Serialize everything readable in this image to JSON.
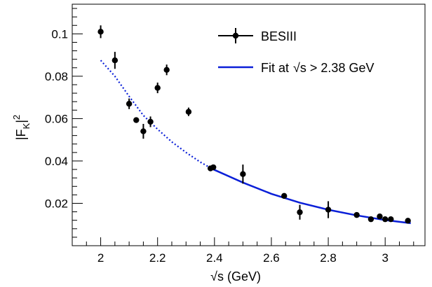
{
  "chart_data": {
    "type": "scatter",
    "xlabel": "s (GeV)",
    "xlabel_sqrt_symbol": "√",
    "ylabel_base": "|F",
    "ylabel_sub": "K",
    "ylabel_end": "|",
    "ylabel_sup": "2",
    "xlim": [
      1.9,
      3.14
    ],
    "ylim": [
      0.0,
      0.114
    ],
    "x_ticks": [
      2,
      2.2,
      2.4,
      2.6,
      2.8,
      3
    ],
    "x_tick_labels": [
      "2",
      "2.2",
      "2.4",
      "2.6",
      "2.8",
      "3"
    ],
    "y_ticks": [
      0.02,
      0.04,
      0.06,
      0.08,
      0.1
    ],
    "y_tick_labels": [
      "0.02",
      "0.04",
      "0.06",
      "0.08",
      "0.1"
    ],
    "grid": false,
    "legend_position": "top-right",
    "series": [
      {
        "name": "BESIII",
        "kind": "points-with-errors",
        "color": "#000000",
        "points": [
          {
            "x": 2.0,
            "y": 0.101,
            "err": 0.003
          },
          {
            "x": 2.05,
            "y": 0.0875,
            "err": 0.004
          },
          {
            "x": 2.1,
            "y": 0.067,
            "err": 0.0025
          },
          {
            "x": 2.125,
            "y": 0.0593,
            "err": 0.001
          },
          {
            "x": 2.15,
            "y": 0.054,
            "err": 0.0035
          },
          {
            "x": 2.175,
            "y": 0.0585,
            "err": 0.0025
          },
          {
            "x": 2.2,
            "y": 0.0745,
            "err": 0.0025
          },
          {
            "x": 2.232,
            "y": 0.083,
            "err": 0.0025
          },
          {
            "x": 2.309,
            "y": 0.0632,
            "err": 0.002
          },
          {
            "x": 2.386,
            "y": 0.0365,
            "err": 0.001
          },
          {
            "x": 2.396,
            "y": 0.037,
            "err": 0.001
          },
          {
            "x": 2.5,
            "y": 0.0338,
            "err": 0.0045
          },
          {
            "x": 2.645,
            "y": 0.0235,
            "err": 0.001
          },
          {
            "x": 2.7,
            "y": 0.0158,
            "err": 0.0035
          },
          {
            "x": 2.8,
            "y": 0.017,
            "err": 0.004
          },
          {
            "x": 2.9,
            "y": 0.0145,
            "err": 0.001
          },
          {
            "x": 2.95,
            "y": 0.0125,
            "err": 0.001
          },
          {
            "x": 2.981,
            "y": 0.0138,
            "err": 0.001
          },
          {
            "x": 3.0,
            "y": 0.0125,
            "err": 0.001
          },
          {
            "x": 3.02,
            "y": 0.0125,
            "err": 0.001
          },
          {
            "x": 3.08,
            "y": 0.0118,
            "err": 0.001
          }
        ]
      },
      {
        "name": "Fit at",
        "name_sqrt_symbol": "√",
        "name_tail": "s > 2.38 GeV",
        "kind": "fit-curve",
        "color": "#0a1fd8",
        "solid_range": [
          2.38,
          3.09
        ],
        "dashed_range": [
          2.0,
          2.38
        ],
        "curve": [
          {
            "x": 2.0,
            "y": 0.0875
          },
          {
            "x": 2.05,
            "y": 0.08
          },
          {
            "x": 2.1,
            "y": 0.0705
          },
          {
            "x": 2.15,
            "y": 0.0615
          },
          {
            "x": 2.2,
            "y": 0.055
          },
          {
            "x": 2.25,
            "y": 0.049
          },
          {
            "x": 2.3,
            "y": 0.044
          },
          {
            "x": 2.35,
            "y": 0.0395
          },
          {
            "x": 2.38,
            "y": 0.0372
          },
          {
            "x": 2.4,
            "y": 0.0358
          },
          {
            "x": 2.5,
            "y": 0.0298
          },
          {
            "x": 2.6,
            "y": 0.0245
          },
          {
            "x": 2.7,
            "y": 0.0203
          },
          {
            "x": 2.8,
            "y": 0.017
          },
          {
            "x": 2.9,
            "y": 0.0143
          },
          {
            "x": 3.0,
            "y": 0.0121
          },
          {
            "x": 3.09,
            "y": 0.0106
          }
        ]
      }
    ]
  }
}
